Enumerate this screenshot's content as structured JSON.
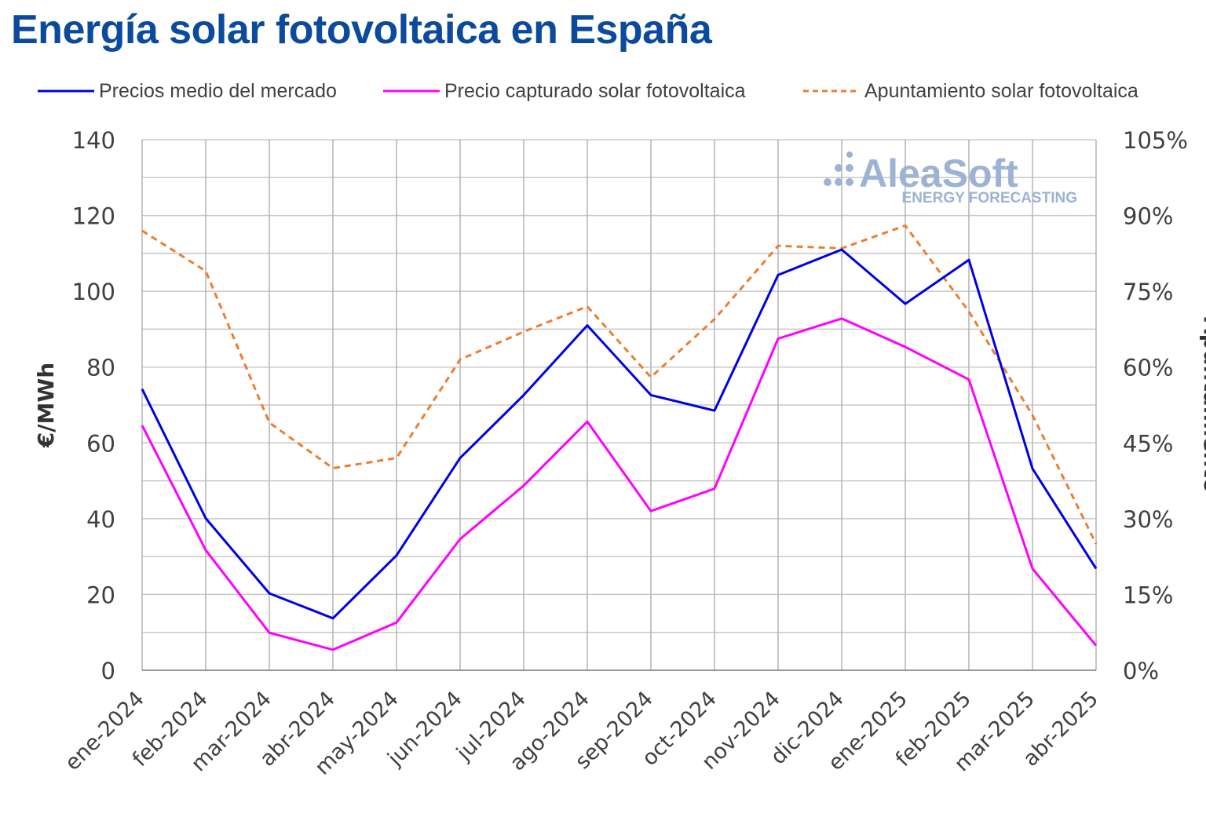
{
  "title": "Energía solar fotovoltaica en España",
  "watermark": {
    "name": "AleaSoft",
    "tagline": "ENERGY FORECASTING"
  },
  "legend": [
    {
      "label": "Precios medio del mercado",
      "color": "#0000e6",
      "style": "solid"
    },
    {
      "label": "Precio capturado solar fotovoltaica",
      "color": "#ff00ff",
      "style": "solid"
    },
    {
      "label": "Apuntamiento solar fotovoltaica",
      "color": "#ed7d31",
      "style": "dashed"
    }
  ],
  "chart_data": {
    "type": "line",
    "ylabel": "€/MWh",
    "y2label": "Apuntamiento",
    "ylim": [
      0,
      140
    ],
    "yticks": [
      "0",
      "20",
      "40",
      "60",
      "80",
      "100",
      "120",
      "140"
    ],
    "y2lim": [
      0,
      1.05
    ],
    "y2ticks": [
      "0%",
      "15%",
      "30%",
      "45%",
      "60%",
      "75%",
      "90%",
      "105%"
    ],
    "grid": true,
    "legend_position": "top",
    "categories": [
      "ene-2024",
      "feb-2024",
      "mar-2024",
      "abr-2024",
      "may-2024",
      "jun-2024",
      "jul-2024",
      "ago-2024",
      "sep-2024",
      "oct-2024",
      "nov-2024",
      "dic-2024",
      "ene-2025",
      "feb-2025",
      "mar-2025",
      "abr-2025"
    ],
    "series": [
      {
        "name": "Precios medio del mercado",
        "axis": "left",
        "color": "#0000e6",
        "dashed": false,
        "values": [
          74.2,
          40.1,
          20.3,
          13.7,
          30.3,
          56.0,
          72.6,
          91.0,
          72.6,
          68.5,
          104.3,
          111.0,
          96.7,
          108.3,
          53.2,
          26.8
        ]
      },
      {
        "name": "Precio capturado solar fotovoltaica",
        "axis": "left",
        "color": "#ff00ff",
        "dashed": false,
        "values": [
          64.6,
          31.7,
          9.9,
          5.4,
          12.6,
          34.6,
          48.7,
          65.6,
          42.0,
          47.9,
          87.5,
          92.8,
          85.3,
          76.7,
          26.8,
          6.5
        ]
      },
      {
        "name": "Apuntamiento solar fotovoltaica",
        "axis": "right",
        "color": "#ed7d31",
        "dashed": true,
        "values": [
          0.87,
          0.79,
          0.49,
          0.4,
          0.42,
          0.615,
          0.67,
          0.72,
          0.58,
          0.695,
          0.84,
          0.835,
          0.88,
          0.71,
          0.505,
          0.25
        ]
      }
    ]
  }
}
